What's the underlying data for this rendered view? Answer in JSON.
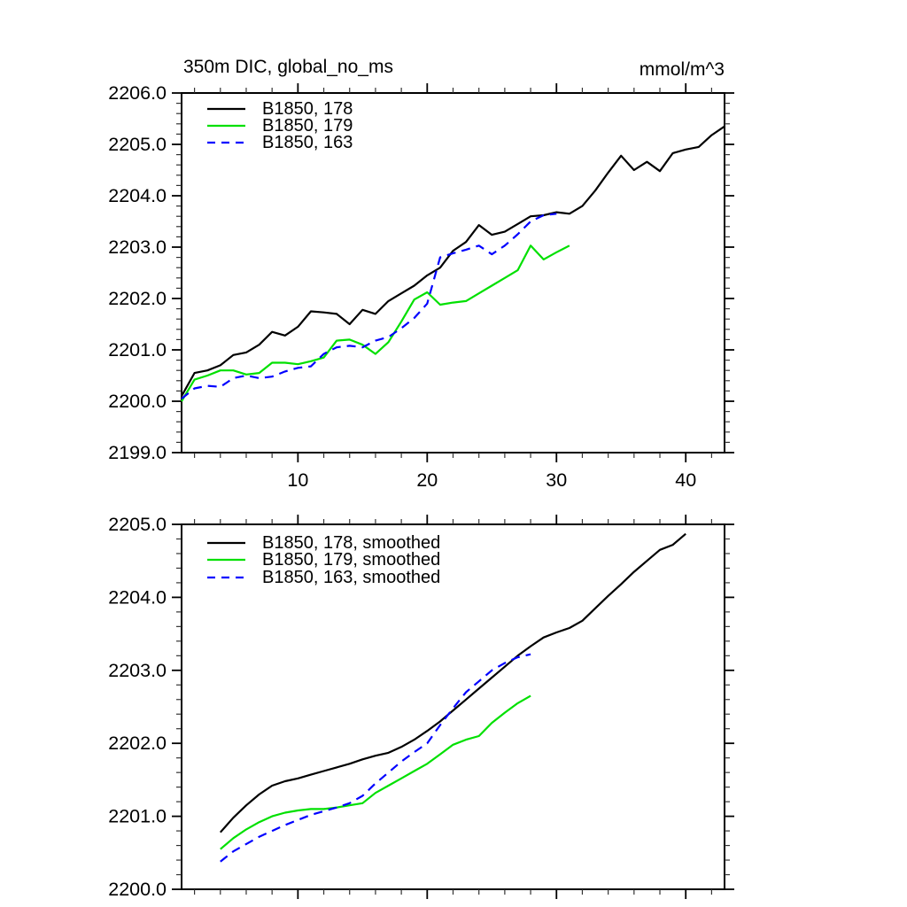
{
  "page": {
    "background": "#ffffff",
    "text_color": "#000000"
  },
  "chart_data": [
    {
      "type": "line",
      "title": "350m DIC, global_no_ms",
      "units_label": "mmol/m^3",
      "legend_position": "top-left-inside",
      "grid": false,
      "x_axis": {
        "range": [
          1,
          43
        ],
        "major_ticks": [
          10,
          20,
          30,
          40
        ],
        "tick_labels": [
          "10",
          "20",
          "30",
          "40"
        ],
        "minor_tick_step": 2,
        "labels_visible": true
      },
      "y_axis": {
        "range": [
          2199.0,
          2206.0
        ],
        "major_tick_step": 1.0,
        "minor_tick_step": 0.2,
        "tick_labels": [
          "2199.0",
          "2200.0",
          "2201.0",
          "2202.0",
          "2203.0",
          "2204.0",
          "2205.0",
          "2206.0"
        ]
      },
      "series": [
        {
          "name": "B1850, 178",
          "color": "#000000",
          "line_style": "solid",
          "x_start": 1,
          "y": [
            2200.1,
            2200.55,
            2200.6,
            2200.7,
            2200.9,
            2200.95,
            2201.1,
            2201.35,
            2201.28,
            2201.45,
            2201.75,
            2201.73,
            2201.7,
            2201.5,
            2201.78,
            2201.7,
            2201.95,
            2202.1,
            2202.25,
            2202.45,
            2202.6,
            2202.93,
            2203.1,
            2203.43,
            2203.24,
            2203.3,
            2203.45,
            2203.6,
            2203.62,
            2203.68,
            2203.65,
            2203.8,
            2204.1,
            2204.45,
            2204.78,
            2204.5,
            2204.66,
            2204.48,
            2204.83,
            2204.9,
            2204.95,
            2205.18,
            2205.35
          ]
        },
        {
          "name": "B1850, 179",
          "color": "#00e000",
          "line_style": "solid",
          "x_start": 1,
          "y": [
            2200.0,
            2200.42,
            2200.5,
            2200.6,
            2200.6,
            2200.52,
            2200.55,
            2200.75,
            2200.75,
            2200.72,
            2200.78,
            2200.85,
            2201.18,
            2201.2,
            2201.1,
            2200.92,
            2201.15,
            2201.55,
            2201.98,
            2202.12,
            2201.88,
            2201.92,
            2201.95,
            2202.1,
            2202.25,
            2202.4,
            2202.55,
            2203.03,
            2202.76,
            2202.9,
            2203.03
          ]
        },
        {
          "name": "B1850, 163",
          "color": "#0000ff",
          "line_style": "dashed",
          "x_start": 1,
          "y": [
            2200.05,
            2200.25,
            2200.3,
            2200.28,
            2200.45,
            2200.5,
            2200.45,
            2200.48,
            2200.58,
            2200.65,
            2200.68,
            2200.92,
            2201.05,
            2201.08,
            2201.05,
            2201.18,
            2201.25,
            2201.42,
            2201.62,
            2201.9,
            2202.8,
            2202.88,
            2202.95,
            2203.03,
            2202.86,
            2203.03,
            2203.25,
            2203.5,
            2203.62,
            2203.65
          ]
        }
      ]
    },
    {
      "type": "line",
      "title": "",
      "units_label": "",
      "legend_position": "top-left-inside",
      "grid": false,
      "x_axis": {
        "range": [
          1,
          43
        ],
        "major_ticks": [
          10,
          20,
          30,
          40
        ],
        "tick_labels": [],
        "minor_tick_step": 2,
        "labels_visible": false
      },
      "y_axis": {
        "range": [
          2200.0,
          2205.0
        ],
        "major_tick_step": 1.0,
        "minor_tick_step": 0.2,
        "tick_labels": [
          "2200.0",
          "2201.0",
          "2202.0",
          "2203.0",
          "2204.0",
          "2205.0"
        ]
      },
      "series": [
        {
          "name": "B1850, 178, smoothed",
          "color": "#000000",
          "line_style": "solid",
          "x_start": 4,
          "y": [
            2200.78,
            2200.98,
            2201.15,
            2201.3,
            2201.42,
            2201.48,
            2201.52,
            2201.57,
            2201.62,
            2201.67,
            2201.72,
            2201.78,
            2201.83,
            2201.87,
            2201.95,
            2202.05,
            2202.17,
            2202.3,
            2202.45,
            2202.6,
            2202.75,
            2202.9,
            2203.05,
            2203.2,
            2203.33,
            2203.45,
            2203.52,
            2203.58,
            2203.68,
            2203.85,
            2204.02,
            2204.18,
            2204.35,
            2204.5,
            2204.65,
            2204.72,
            2204.87
          ]
        },
        {
          "name": "B1850, 179, smoothed",
          "color": "#00e000",
          "line_style": "solid",
          "x_start": 4,
          "y": [
            2200.55,
            2200.7,
            2200.82,
            2200.92,
            2201.0,
            2201.05,
            2201.08,
            2201.1,
            2201.1,
            2201.12,
            2201.15,
            2201.18,
            2201.32,
            2201.42,
            2201.52,
            2201.62,
            2201.72,
            2201.85,
            2201.98,
            2202.05,
            2202.1,
            2202.28,
            2202.42,
            2202.55,
            2202.65
          ]
        },
        {
          "name": "B1850, 163, smoothed",
          "color": "#0000ff",
          "line_style": "dashed",
          "x_start": 4,
          "y": [
            2200.38,
            2200.52,
            2200.62,
            2200.72,
            2200.8,
            2200.88,
            2200.95,
            2201.02,
            2201.07,
            2201.12,
            2201.18,
            2201.28,
            2201.45,
            2201.6,
            2201.75,
            2201.88,
            2202.0,
            2202.25,
            2202.48,
            2202.7,
            2202.85,
            2203.0,
            2203.1,
            2203.18,
            2203.22
          ]
        }
      ]
    }
  ]
}
